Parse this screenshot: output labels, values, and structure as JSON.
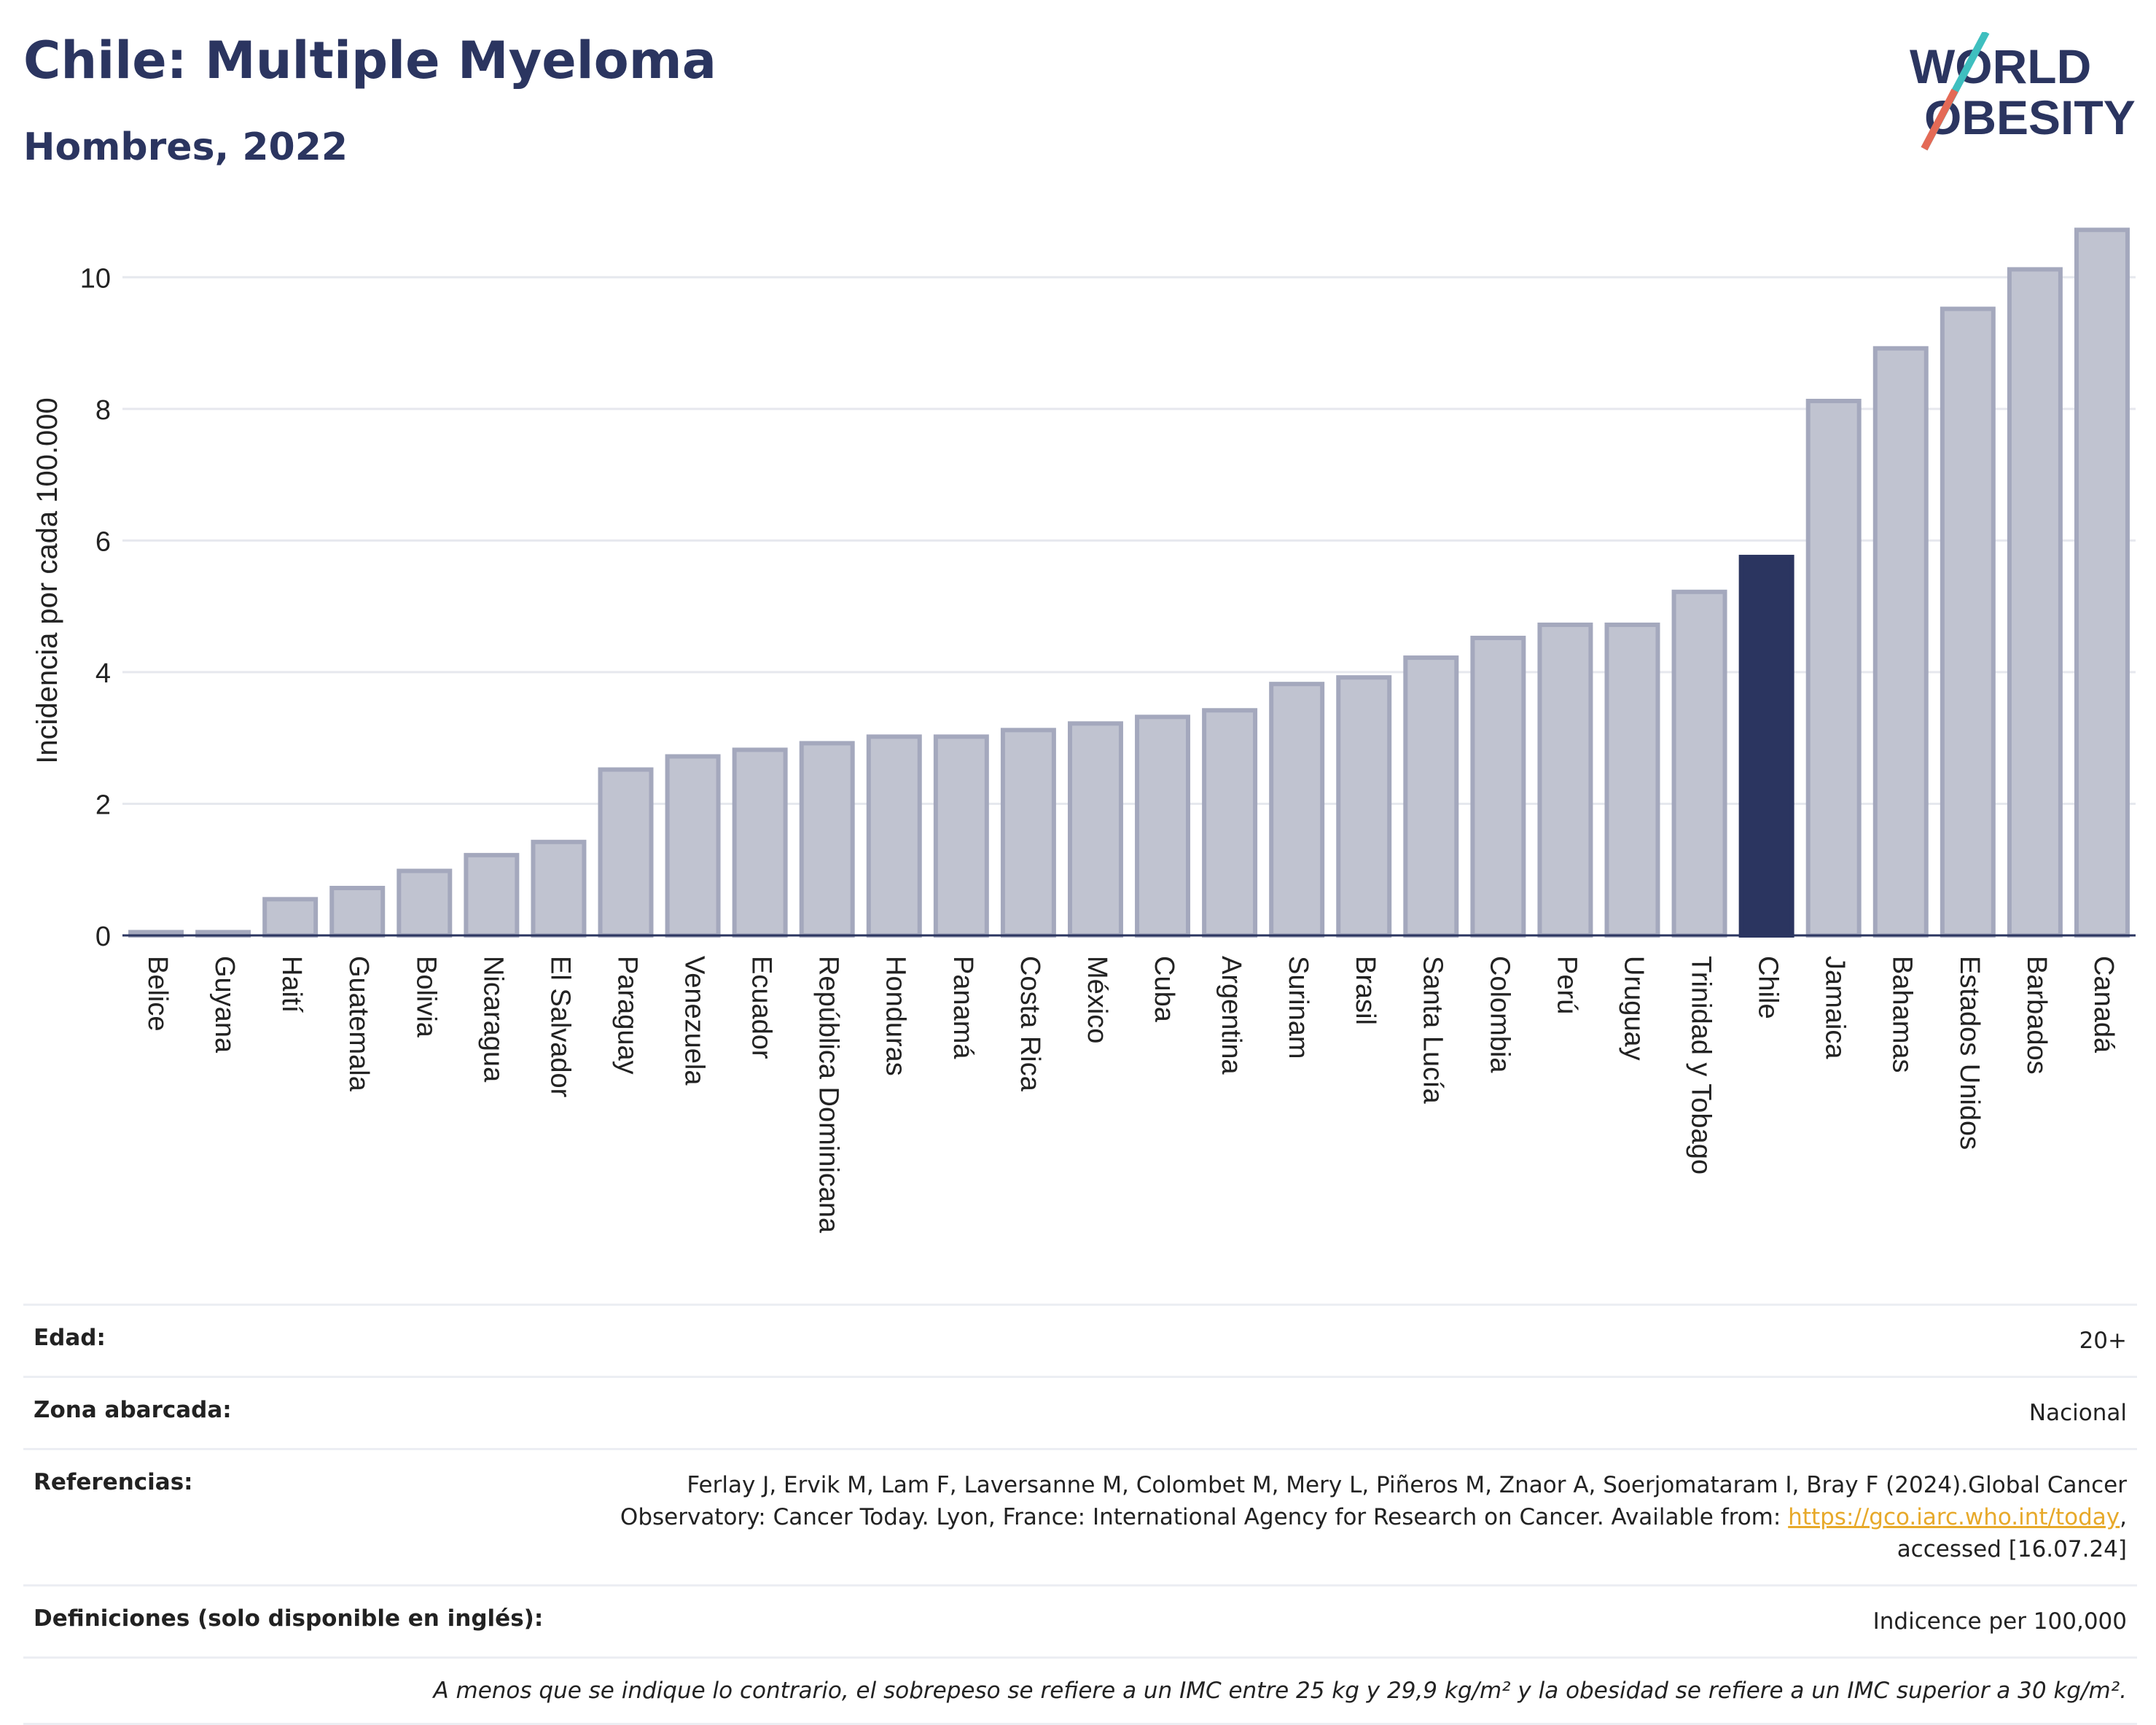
{
  "header": {
    "title": "Chile: Multiple Myeloma",
    "subtitle": "Hombres, 2022"
  },
  "logo": {
    "line1": "WORLD",
    "line2": "OBESITY"
  },
  "chart_data": {
    "type": "bar",
    "ylabel": "Incidencia por cada 100.000",
    "ylim": [
      0,
      11
    ],
    "yticks": [
      0,
      2,
      4,
      6,
      8,
      10
    ],
    "grid": true,
    "highlight": "Chile",
    "highlight_color": "#2b3560",
    "bar_color": "#c0c3d0",
    "bar_border_color": "#a4a8bd",
    "categories": [
      "Belice",
      "Guyana",
      "Haití",
      "Guatemala",
      "Bolivia",
      "Nicaragua",
      "El Salvador",
      "Paraguay",
      "Venezuela",
      "Ecuador",
      "República Dominicana",
      "Honduras",
      "Panamá",
      "Costa Rica",
      "México",
      "Cuba",
      "Argentina",
      "Surinam",
      "Brasil",
      "Santa Lucía",
      "Colombia",
      "Perú",
      "Uruguay",
      "Trinidad y Tobago",
      "Chile",
      "Jamaica",
      "Bahamas",
      "Estados Unidos",
      "Barbados",
      "Canadá"
    ],
    "values": [
      0.05,
      0.05,
      0.55,
      0.72,
      0.98,
      1.22,
      1.42,
      2.52,
      2.72,
      2.82,
      2.92,
      3.02,
      3.02,
      3.12,
      3.22,
      3.32,
      3.42,
      3.82,
      3.92,
      4.22,
      4.52,
      4.72,
      4.72,
      5.22,
      5.75,
      8.12,
      8.92,
      9.52,
      10.12,
      10.72
    ]
  },
  "info": {
    "edad_label": "Edad:",
    "edad_value": "20+",
    "zona_label": "Zona abarcada:",
    "zona_value": "Nacional",
    "ref_label": "Referencias:",
    "ref_line1": "Ferlay J, Ervik M, Lam F, Laversanne M, Colombet M, Mery L, Piñeros M, Znaor A, Soerjomataram I, Bray F (2024).Global Cancer",
    "ref_line2": "Observatory: Cancer Today. Lyon, France: International Agency for Research on Cancer. Available from: ",
    "ref_link": "https://gco.iarc.who.int/today",
    "ref_line2_end": ",",
    "ref_line3": "accessed [16.07.24]",
    "def_label": "Definiciones (solo disponible en inglés):",
    "def_value": "Indicence per 100,000",
    "note": "A menos que se indique lo contrario, el sobrepeso se refiere a un IMC entre 25 kg y 29,9 kg/m² y la obesidad se refiere a un IMC superior a 30 kg/m²."
  }
}
